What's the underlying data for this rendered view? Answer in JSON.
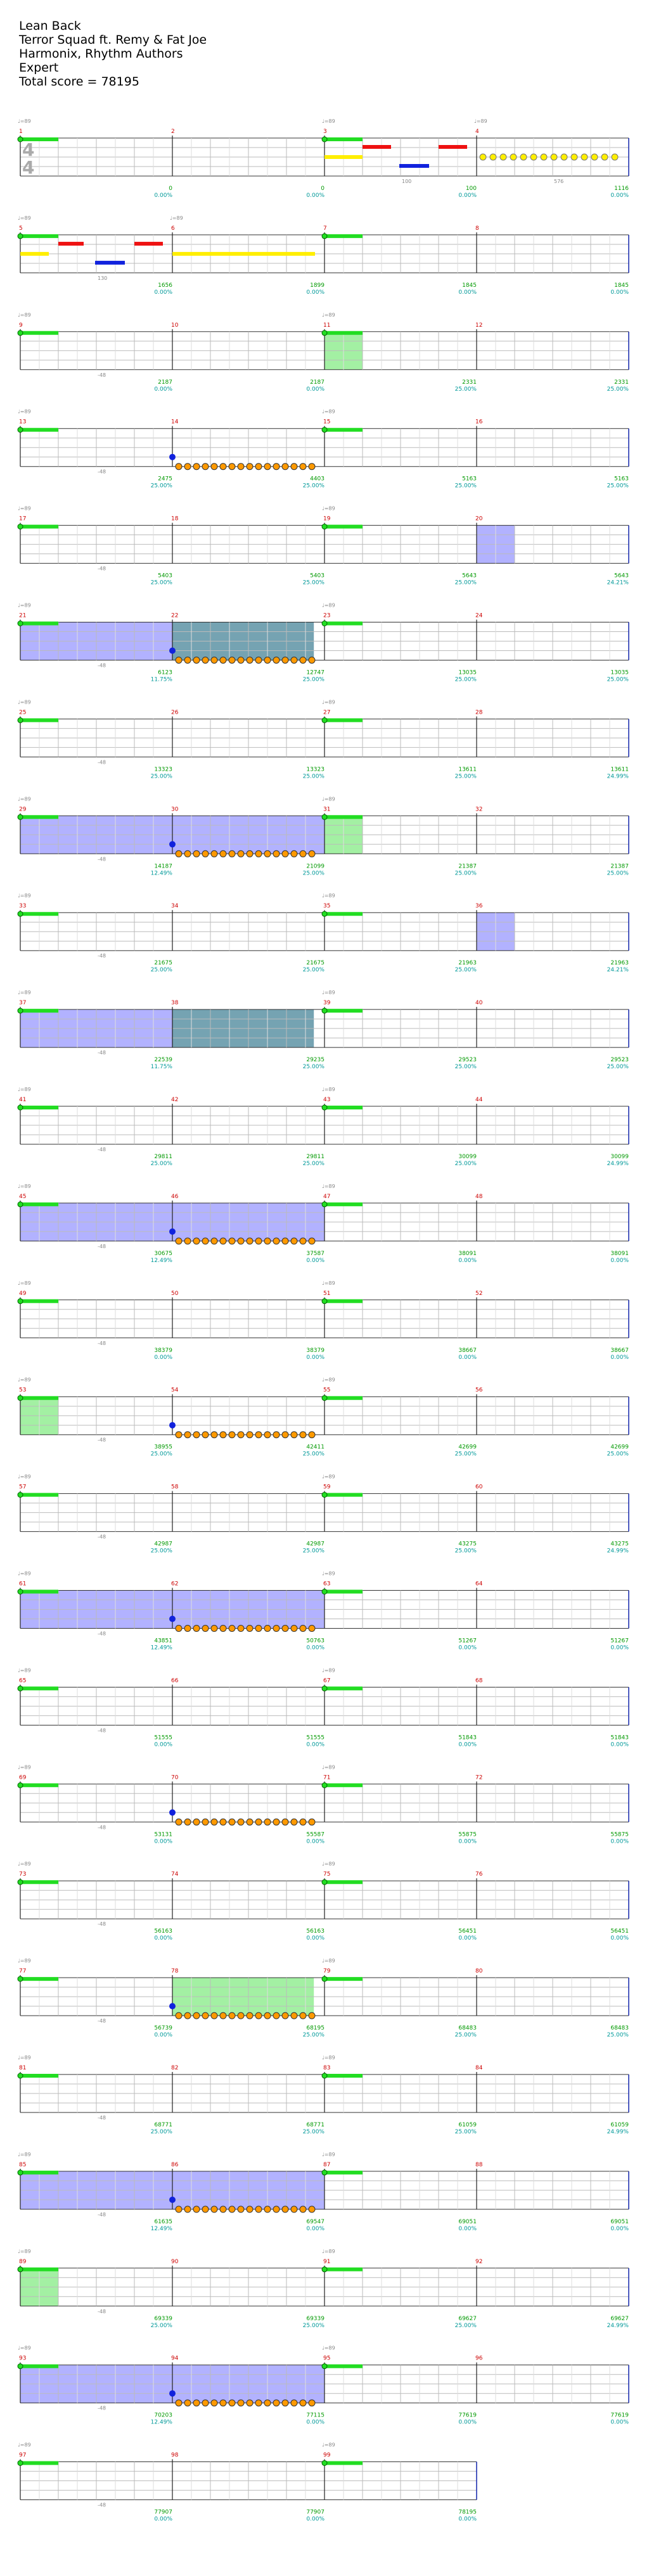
{
  "song": {
    "title": "Lean Back",
    "artist": "Terror Squad ft. Remy & Fat Joe",
    "charter": "Harmonix, Rhythm Authors",
    "difficulty": "Expert",
    "total_score_label": "Total score = 78195"
  },
  "time_signature": {
    "numerator": "4",
    "denominator": "4"
  },
  "tempo_label": "♩=89",
  "colors": {
    "green": "#22dd22",
    "red": "#ee1111",
    "yellow": "#ffee00",
    "blue": "#1122dd",
    "orange": "#ff9900",
    "sp_fill": "#aaaaff",
    "solo_fill": "#99ee99",
    "overlap_fill": "#6699aa",
    "bar_num": "#cc0000",
    "score": "#009900",
    "pct": "#009999",
    "grey": "#888888"
  },
  "systems": [
    {
      "bars": [
        "1",
        "2",
        "3",
        "4"
      ],
      "bpm": [
        "♩=89",
        "",
        "♩=89",
        "♩=89"
      ],
      "scores": [
        "0",
        "0",
        "100",
        "1116"
      ],
      "pcts": [
        "0.00%",
        "0.00%",
        "0.00%",
        "0.00%"
      ],
      "counts": [
        "",
        "",
        "100",
        "576"
      ]
    },
    {
      "bars": [
        "5",
        "6",
        "7",
        "8"
      ],
      "bpm": [
        "♩=89",
        "♩=89",
        "",
        ""
      ],
      "scores": [
        "1656",
        "1899",
        "1845",
        "1845"
      ],
      "pcts": [
        "0.00%",
        "0.00%",
        "0.00%",
        "0.00%"
      ],
      "counts": [
        "130",
        "",
        "",
        ""
      ]
    },
    {
      "bars": [
        "9",
        "10",
        "11",
        "12"
      ],
      "bpm": [
        "♩=89",
        "",
        "♩=89",
        ""
      ],
      "scores": [
        "2187",
        "2187",
        "2331",
        "2331"
      ],
      "pcts": [
        "0.00%",
        "0.00%",
        "25.00%",
        "25.00%"
      ],
      "counts": [
        "-48",
        "",
        "",
        ""
      ]
    },
    {
      "bars": [
        "13",
        "14",
        "15",
        "16"
      ],
      "bpm": [
        "♩=89",
        "",
        "♩=89",
        ""
      ],
      "scores": [
        "2475",
        "4403",
        "5163",
        "5163"
      ],
      "pcts": [
        "25.00%",
        "25.00%",
        "25.00%",
        "25.00%"
      ],
      "counts": [
        "-48",
        "",
        "",
        ""
      ]
    },
    {
      "bars": [
        "17",
        "18",
        "19",
        "20"
      ],
      "bpm": [
        "♩=89",
        "",
        "♩=89",
        ""
      ],
      "scores": [
        "5403",
        "5403",
        "5643",
        "5643"
      ],
      "pcts": [
        "25.00%",
        "25.00%",
        "25.00%",
        "24.21%"
      ],
      "counts": [
        "-48",
        "",
        "",
        ""
      ]
    },
    {
      "bars": [
        "21",
        "22",
        "23",
        "24"
      ],
      "bpm": [
        "♩=89",
        "",
        "♩=89",
        ""
      ],
      "scores": [
        "6123",
        "12747",
        "13035",
        "13035"
      ],
      "pcts": [
        "11.75%",
        "25.00%",
        "25.00%",
        "25.00%"
      ],
      "counts": [
        "-48",
        "",
        "",
        ""
      ]
    },
    {
      "bars": [
        "25",
        "26",
        "27",
        "28"
      ],
      "bpm": [
        "♩=89",
        "",
        "♩=89",
        ""
      ],
      "scores": [
        "13323",
        "13323",
        "13611",
        "13611"
      ],
      "pcts": [
        "25.00%",
        "25.00%",
        "25.00%",
        "24.99%"
      ],
      "counts": [
        "-48",
        "",
        "",
        ""
      ]
    },
    {
      "bars": [
        "29",
        "30",
        "31",
        "32"
      ],
      "bpm": [
        "♩=89",
        "",
        "♩=89",
        ""
      ],
      "scores": [
        "14187",
        "21099",
        "21387",
        "21387"
      ],
      "pcts": [
        "12.49%",
        "25.00%",
        "25.00%",
        "25.00%"
      ],
      "counts": [
        "-48",
        "",
        "",
        ""
      ]
    },
    {
      "bars": [
        "33",
        "34",
        "35",
        "36"
      ],
      "bpm": [
        "♩=89",
        "",
        "♩=89",
        ""
      ],
      "scores": [
        "21675",
        "21675",
        "21963",
        "21963"
      ],
      "pcts": [
        "25.00%",
        "25.00%",
        "25.00%",
        "24.21%"
      ],
      "counts": [
        "-48",
        "",
        "",
        ""
      ]
    },
    {
      "bars": [
        "37",
        "38",
        "39",
        "40"
      ],
      "bpm": [
        "♩=89",
        "",
        "♩=89",
        ""
      ],
      "scores": [
        "22539",
        "29235",
        "29523",
        "29523"
      ],
      "pcts": [
        "11.75%",
        "25.00%",
        "25.00%",
        "25.00%"
      ],
      "counts": [
        "-48",
        "",
        "",
        ""
      ]
    },
    {
      "bars": [
        "41",
        "42",
        "43",
        "44"
      ],
      "bpm": [
        "♩=89",
        "",
        "♩=89",
        ""
      ],
      "scores": [
        "29811",
        "29811",
        "30099",
        "30099"
      ],
      "pcts": [
        "25.00%",
        "25.00%",
        "25.00%",
        "24.99%"
      ],
      "counts": [
        "-48",
        "",
        "",
        ""
      ]
    },
    {
      "bars": [
        "45",
        "46",
        "47",
        "48"
      ],
      "bpm": [
        "♩=89",
        "",
        "♩=89",
        ""
      ],
      "scores": [
        "30675",
        "37587",
        "38091",
        "38091"
      ],
      "pcts": [
        "12.49%",
        "0.00%",
        "0.00%",
        "0.00%"
      ],
      "counts": [
        "-48",
        "",
        "",
        ""
      ]
    },
    {
      "bars": [
        "49",
        "50",
        "51",
        "52"
      ],
      "bpm": [
        "♩=89",
        "",
        "♩=89",
        ""
      ],
      "scores": [
        "38379",
        "38379",
        "38667",
        "38667"
      ],
      "pcts": [
        "0.00%",
        "0.00%",
        "0.00%",
        "0.00%"
      ],
      "counts": [
        "-48",
        "",
        "",
        ""
      ]
    },
    {
      "bars": [
        "53",
        "54",
        "55",
        "56"
      ],
      "bpm": [
        "♩=89",
        "",
        "♩=89",
        ""
      ],
      "scores": [
        "38955",
        "42411",
        "42699",
        "42699"
      ],
      "pcts": [
        "25.00%",
        "25.00%",
        "25.00%",
        "25.00%"
      ],
      "counts": [
        "-48",
        "",
        "",
        ""
      ]
    },
    {
      "bars": [
        "57",
        "58",
        "59",
        "60"
      ],
      "bpm": [
        "♩=89",
        "",
        "♩=89",
        ""
      ],
      "scores": [
        "42987",
        "42987",
        "43275",
        "43275"
      ],
      "pcts": [
        "25.00%",
        "25.00%",
        "25.00%",
        "24.99%"
      ],
      "counts": [
        "-48",
        "",
        "",
        ""
      ]
    },
    {
      "bars": [
        "61",
        "62",
        "63",
        "64"
      ],
      "bpm": [
        "♩=89",
        "",
        "♩=89",
        ""
      ],
      "scores": [
        "43851",
        "50763",
        "51267",
        "51267"
      ],
      "pcts": [
        "12.49%",
        "0.00%",
        "0.00%",
        "0.00%"
      ],
      "counts": [
        "-48",
        "",
        "",
        ""
      ]
    },
    {
      "bars": [
        "65",
        "66",
        "67",
        "68"
      ],
      "bpm": [
        "♩=89",
        "",
        "♩=89",
        ""
      ],
      "scores": [
        "51555",
        "51555",
        "51843",
        "51843"
      ],
      "pcts": [
        "0.00%",
        "0.00%",
        "0.00%",
        "0.00%"
      ],
      "counts": [
        "-48",
        "",
        "",
        ""
      ]
    },
    {
      "bars": [
        "69",
        "70",
        "71",
        "72"
      ],
      "bpm": [
        "♩=89",
        "",
        "♩=89",
        ""
      ],
      "scores": [
        "53131",
        "55587",
        "55875",
        "55875"
      ],
      "pcts": [
        "0.00%",
        "0.00%",
        "0.00%",
        "0.00%"
      ],
      "counts": [
        "-48",
        "",
        "",
        ""
      ]
    },
    {
      "bars": [
        "73",
        "74",
        "75",
        "76"
      ],
      "bpm": [
        "♩=89",
        "",
        "♩=89",
        ""
      ],
      "scores": [
        "56163",
        "56163",
        "56451",
        "56451"
      ],
      "pcts": [
        "0.00%",
        "0.00%",
        "0.00%",
        "0.00%"
      ],
      "counts": [
        "-48",
        "",
        "",
        ""
      ]
    },
    {
      "bars": [
        "77",
        "78",
        "79",
        "80"
      ],
      "bpm": [
        "♩=89",
        "",
        "♩=89",
        ""
      ],
      "scores": [
        "56739",
        "68195",
        "68483",
        "68483"
      ],
      "pcts": [
        "0.00%",
        "25.00%",
        "25.00%",
        "25.00%"
      ],
      "counts": [
        "-48",
        "",
        "",
        ""
      ]
    },
    {
      "bars": [
        "81",
        "82",
        "83",
        "84"
      ],
      "bpm": [
        "♩=89",
        "",
        "♩=89",
        ""
      ],
      "scores": [
        "68771",
        "68771",
        "61059",
        "61059"
      ],
      "pcts": [
        "25.00%",
        "25.00%",
        "25.00%",
        "24.99%"
      ],
      "counts": [
        "-48",
        "",
        "",
        ""
      ]
    },
    {
      "bars": [
        "85",
        "86",
        "87",
        "88"
      ],
      "bpm": [
        "♩=89",
        "",
        "♩=89",
        ""
      ],
      "scores": [
        "61635",
        "69547",
        "69051",
        "69051"
      ],
      "pcts": [
        "12.49%",
        "0.00%",
        "0.00%",
        "0.00%"
      ],
      "counts": [
        "-48",
        "",
        "",
        ""
      ]
    },
    {
      "bars": [
        "89",
        "90",
        "91",
        "92"
      ],
      "bpm": [
        "♩=89",
        "",
        "♩=89",
        ""
      ],
      "scores": [
        "69339",
        "69339",
        "69627",
        "69627"
      ],
      "pcts": [
        "25.00%",
        "25.00%",
        "25.00%",
        "24.99%"
      ],
      "counts": [
        "-48",
        "",
        "",
        ""
      ]
    },
    {
      "bars": [
        "93",
        "94",
        "95",
        "96"
      ],
      "bpm": [
        "♩=89",
        "",
        "♩=89",
        ""
      ],
      "scores": [
        "70203",
        "77115",
        "77619",
        "77619"
      ],
      "pcts": [
        "12.49%",
        "0.00%",
        "0.00%",
        "0.00%"
      ],
      "counts": [
        "-48",
        "",
        "",
        ""
      ]
    },
    {
      "bars": [
        "97",
        "98",
        "99"
      ],
      "bpm": [
        "♩=89",
        "",
        "♩=89"
      ],
      "scores": [
        "77907",
        "77907",
        "78195"
      ],
      "pcts": [
        "0.00%",
        "0.00%",
        "0.00%"
      ],
      "counts": [
        "-48",
        "",
        ""
      ]
    }
  ]
}
